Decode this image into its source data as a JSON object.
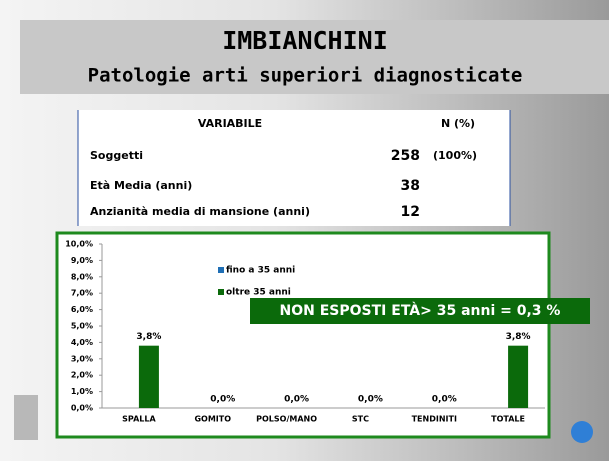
{
  "header": {
    "title": "IMBIANCHINI",
    "subtitle": "Patologie arti superiori diagnosticate"
  },
  "table": {
    "header": [
      "VARIABILE",
      "N (%)"
    ],
    "rows": [
      [
        "Soggetti",
        "258",
        "(100%)"
      ],
      [
        "Età Media (anni)",
        "38"
      ],
      [
        "Anzianità media di mansione (anni)",
        "12"
      ]
    ]
  },
  "chart_data": {
    "type": "bar",
    "categories": [
      "SPALLA",
      "GOMITO",
      "POLSO/MANO",
      "STC",
      "TENDINITI",
      "TOTALE"
    ],
    "series": [
      {
        "name": "fino a 35 anni",
        "color": "#1f6fb5",
        "values": [
          0,
          0,
          0,
          0,
          0,
          0
        ]
      },
      {
        "name": "oltre 35 anni",
        "color": "#0b6a0b",
        "values": [
          3.8,
          0,
          0,
          0,
          0,
          3.8
        ],
        "value_labels": [
          "3,8%",
          "0,0%",
          "0,0%",
          "0,0%",
          "0,0%",
          "3,8%"
        ]
      }
    ],
    "ylim": [
      0,
      10
    ],
    "yticks": [
      {
        "value": 0,
        "label": "0,0%"
      },
      {
        "value": 1,
        "label": "1,0%"
      },
      {
        "value": 2,
        "label": "2,0%"
      },
      {
        "value": 3,
        "label": "3,0%"
      },
      {
        "value": 4,
        "label": "4,0%"
      },
      {
        "value": 5,
        "label": "5,0%"
      },
      {
        "value": 6,
        "label": "6,0%"
      },
      {
        "value": 7,
        "label": "7,0%"
      },
      {
        "value": 8,
        "label": "8,0%"
      },
      {
        "value": 9,
        "label": "9,0%"
      },
      {
        "value": 10,
        "label": "10,0%"
      }
    ],
    "annotation": "NON ESPOSTI ETÀ> 35 anni = 0,3 %"
  }
}
